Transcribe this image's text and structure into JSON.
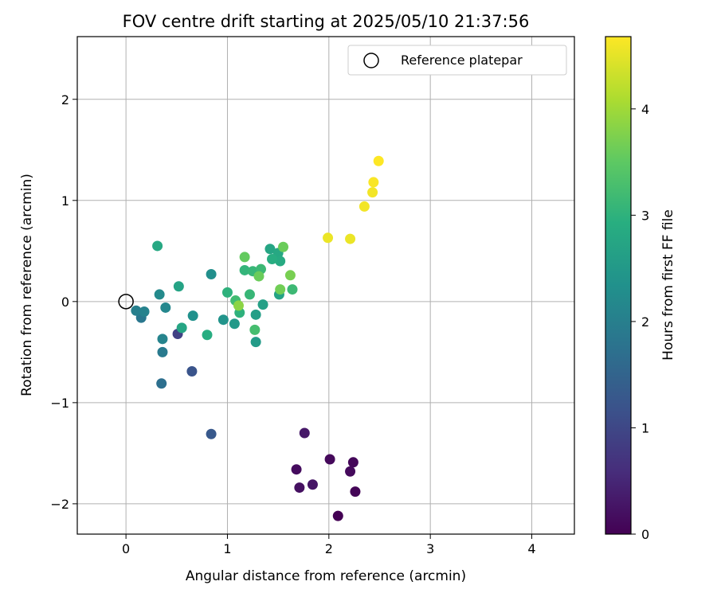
{
  "chart_data": {
    "type": "scatter",
    "title": "FOV centre drift starting at 2025/05/10 21:37:56",
    "xlabel": "Angular distance from reference (arcmin)",
    "ylabel": "Rotation from reference (arcmin)",
    "xlim": [
      -0.48,
      4.42
    ],
    "ylim": [
      -2.3,
      2.62
    ],
    "xticks": [
      0,
      1,
      2,
      3,
      4
    ],
    "yticks": [
      -2,
      -1,
      0,
      1,
      2
    ],
    "grid": true,
    "legend": {
      "placement": "upper right",
      "entries": [
        "Reference platepar"
      ]
    },
    "reference_point": {
      "name": "Reference platepar",
      "x": 0,
      "y": 0,
      "marker": "open-circle",
      "color": "#000000"
    },
    "colorbar": {
      "label": "Hours from first FF file",
      "colormap": "viridis",
      "range": [
        0,
        4.68
      ],
      "ticks": [
        0,
        1,
        2,
        3,
        4
      ]
    },
    "points": [
      {
        "x": 2.09,
        "y": -2.12,
        "t": 0.0
      },
      {
        "x": 2.26,
        "y": -1.88,
        "t": 0.05
      },
      {
        "x": 2.24,
        "y": -1.59,
        "t": 0.08
      },
      {
        "x": 2.01,
        "y": -1.56,
        "t": 0.1
      },
      {
        "x": 2.21,
        "y": -1.68,
        "t": 0.12
      },
      {
        "x": 1.68,
        "y": -1.66,
        "t": 0.15
      },
      {
        "x": 1.71,
        "y": -1.84,
        "t": 0.2
      },
      {
        "x": 1.84,
        "y": -1.81,
        "t": 0.25
      },
      {
        "x": 1.76,
        "y": -1.3,
        "t": 0.3
      },
      {
        "x": 0.51,
        "y": -0.32,
        "t": 0.9
      },
      {
        "x": 0.65,
        "y": -0.69,
        "t": 1.2
      },
      {
        "x": 0.84,
        "y": -1.31,
        "t": 1.3
      },
      {
        "x": 0.35,
        "y": -0.81,
        "t": 1.7
      },
      {
        "x": 0.15,
        "y": -0.16,
        "t": 1.85
      },
      {
        "x": 0.36,
        "y": -0.5,
        "t": 1.9
      },
      {
        "x": 0.1,
        "y": -0.09,
        "t": 2.0
      },
      {
        "x": 0.18,
        "y": -0.1,
        "t": 2.05
      },
      {
        "x": 0.36,
        "y": -0.37,
        "t": 2.1
      },
      {
        "x": 0.39,
        "y": -0.06,
        "t": 2.15
      },
      {
        "x": 0.33,
        "y": 0.07,
        "t": 2.2
      },
      {
        "x": 0.84,
        "y": 0.27,
        "t": 2.3
      },
      {
        "x": 0.66,
        "y": -0.14,
        "t": 2.35
      },
      {
        "x": 0.96,
        "y": -0.18,
        "t": 2.4
      },
      {
        "x": 1.07,
        "y": -0.22,
        "t": 2.5
      },
      {
        "x": 1.28,
        "y": -0.4,
        "t": 2.55
      },
      {
        "x": 1.28,
        "y": -0.13,
        "t": 2.6
      },
      {
        "x": 1.35,
        "y": -0.03,
        "t": 2.65
      },
      {
        "x": 1.51,
        "y": 0.07,
        "t": 2.7
      },
      {
        "x": 1.42,
        "y": 0.52,
        "t": 2.75
      },
      {
        "x": 1.5,
        "y": 0.48,
        "t": 2.8
      },
      {
        "x": 1.52,
        "y": 0.4,
        "t": 2.85
      },
      {
        "x": 1.44,
        "y": 0.42,
        "t": 2.9
      },
      {
        "x": 0.52,
        "y": 0.15,
        "t": 2.7
      },
      {
        "x": 0.55,
        "y": -0.26,
        "t": 2.75
      },
      {
        "x": 0.31,
        "y": 0.55,
        "t": 2.8
      },
      {
        "x": 0.8,
        "y": -0.33,
        "t": 2.9
      },
      {
        "x": 1.0,
        "y": 0.09,
        "t": 3.0
      },
      {
        "x": 1.12,
        "y": -0.11,
        "t": 3.0
      },
      {
        "x": 1.17,
        "y": 0.31,
        "t": 3.05
      },
      {
        "x": 1.22,
        "y": 0.07,
        "t": 3.1
      },
      {
        "x": 1.25,
        "y": 0.3,
        "t": 3.1
      },
      {
        "x": 1.33,
        "y": 0.32,
        "t": 3.15
      },
      {
        "x": 1.64,
        "y": 0.12,
        "t": 3.15
      },
      {
        "x": 1.27,
        "y": -0.28,
        "t": 3.25
      },
      {
        "x": 1.08,
        "y": 0.01,
        "t": 3.2
      },
      {
        "x": 1.31,
        "y": 0.25,
        "t": 3.6
      },
      {
        "x": 1.17,
        "y": 0.44,
        "t": 3.55
      },
      {
        "x": 1.55,
        "y": 0.54,
        "t": 3.6
      },
      {
        "x": 1.52,
        "y": 0.12,
        "t": 3.65
      },
      {
        "x": 1.62,
        "y": 0.26,
        "t": 3.7
      },
      {
        "x": 1.11,
        "y": -0.04,
        "t": 3.85
      },
      {
        "x": 1.99,
        "y": 0.63,
        "t": 4.55
      },
      {
        "x": 2.21,
        "y": 0.62,
        "t": 4.55
      },
      {
        "x": 2.35,
        "y": 0.94,
        "t": 4.6
      },
      {
        "x": 2.43,
        "y": 1.08,
        "t": 4.6
      },
      {
        "x": 2.44,
        "y": 1.18,
        "t": 4.65
      },
      {
        "x": 2.49,
        "y": 1.39,
        "t": 4.68
      }
    ]
  }
}
